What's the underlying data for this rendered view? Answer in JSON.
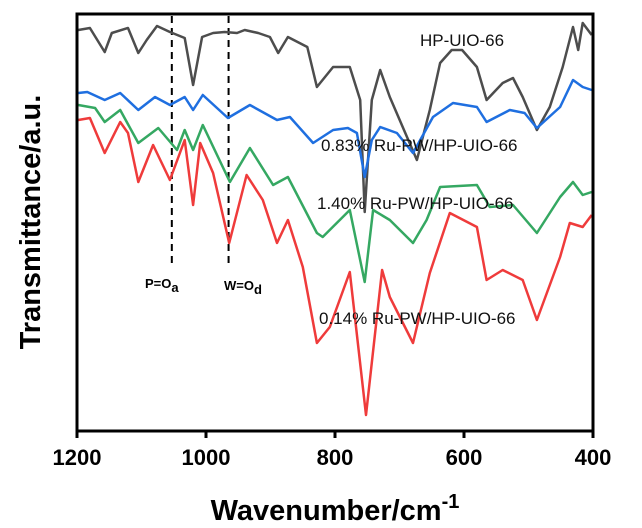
{
  "chart_data": {
    "type": "line",
    "title": "",
    "xlabel": "Wavenumber/cm",
    "xlabel_superscript": "-1",
    "ylabel": "Transmittance/a.u.",
    "xlim": [
      1200,
      400
    ],
    "ylim": [
      0,
      415
    ],
    "x_reversed": true,
    "grid": false,
    "xticks": [
      "1200",
      "1000",
      "800",
      "600",
      "400"
    ],
    "xtick_values": [
      1200,
      1000,
      800,
      600,
      400
    ],
    "annotations": [
      {
        "text": "P=O",
        "sub": "a",
        "x": 1053
      },
      {
        "text": "W=O",
        "sub": "d",
        "x": 965
      }
    ],
    "series": [
      {
        "name": "HP-UIO-66",
        "color": "#4d4d4d",
        "points": [
          [
            1198,
            400
          ],
          [
            1180,
            402
          ],
          [
            1157,
            378
          ],
          [
            1146,
            397
          ],
          [
            1121,
            402
          ],
          [
            1105,
            377
          ],
          [
            1092,
            390
          ],
          [
            1076,
            404
          ],
          [
            1056,
            398
          ],
          [
            1033,
            392
          ],
          [
            1020,
            345
          ],
          [
            1006,
            393
          ],
          [
            989,
            397
          ],
          [
            971,
            398
          ],
          [
            952,
            397
          ],
          [
            940,
            400
          ],
          [
            919,
            397
          ],
          [
            901,
            393
          ],
          [
            888,
            377
          ],
          [
            873,
            393
          ],
          [
            843,
            383
          ],
          [
            828,
            343
          ],
          [
            803,
            363
          ],
          [
            777,
            363
          ],
          [
            761,
            330
          ],
          [
            754,
            218
          ],
          [
            743,
            330
          ],
          [
            730,
            360
          ],
          [
            715,
            333
          ],
          [
            695,
            303
          ],
          [
            673,
            270
          ],
          [
            653,
            320
          ],
          [
            637,
            367
          ],
          [
            619,
            380
          ],
          [
            603,
            380
          ],
          [
            580,
            363
          ],
          [
            565,
            330
          ],
          [
            540,
            347
          ],
          [
            524,
            352
          ],
          [
            509,
            333
          ],
          [
            487,
            300
          ],
          [
            467,
            323
          ],
          [
            447,
            363
          ],
          [
            431,
            403
          ],
          [
            423,
            380
          ],
          [
            416,
            407
          ],
          [
            402,
            395
          ]
        ]
      },
      {
        "name": "0.83% Ru-PW/HP-UIO-66",
        "color": "#1f6fe0",
        "points": [
          [
            1198,
            337
          ],
          [
            1184,
            338
          ],
          [
            1157,
            330
          ],
          [
            1133,
            337
          ],
          [
            1105,
            320
          ],
          [
            1079,
            333
          ],
          [
            1056,
            325
          ],
          [
            1033,
            333
          ],
          [
            1020,
            320
          ],
          [
            1005,
            335
          ],
          [
            966,
            312
          ],
          [
            932,
            325
          ],
          [
            890,
            310
          ],
          [
            870,
            313
          ],
          [
            834,
            287
          ],
          [
            803,
            300
          ],
          [
            780,
            302
          ],
          [
            766,
            297
          ],
          [
            754,
            253
          ],
          [
            743,
            290
          ],
          [
            730,
            303
          ],
          [
            704,
            297
          ],
          [
            679,
            277
          ],
          [
            648,
            313
          ],
          [
            617,
            327
          ],
          [
            580,
            323
          ],
          [
            565,
            308
          ],
          [
            529,
            320
          ],
          [
            506,
            317
          ],
          [
            487,
            302
          ],
          [
            451,
            323
          ],
          [
            431,
            350
          ],
          [
            416,
            343
          ],
          [
            402,
            340
          ]
        ]
      },
      {
        "name": "1.40% Ru-PW/HP-UIO-66",
        "color": "#35a862",
        "points": [
          [
            1198,
            325
          ],
          [
            1172,
            322
          ],
          [
            1157,
            308
          ],
          [
            1133,
            320
          ],
          [
            1105,
            287
          ],
          [
            1074,
            302
          ],
          [
            1045,
            280
          ],
          [
            1033,
            300
          ],
          [
            1020,
            280
          ],
          [
            1005,
            305
          ],
          [
            963,
            248
          ],
          [
            932,
            282
          ],
          [
            896,
            245
          ],
          [
            873,
            253
          ],
          [
            828,
            197
          ],
          [
            819,
            193
          ],
          [
            777,
            220
          ],
          [
            754,
            148
          ],
          [
            741,
            220
          ],
          [
            715,
            210
          ],
          [
            679,
            187
          ],
          [
            658,
            210
          ],
          [
            637,
            243
          ],
          [
            580,
            245
          ],
          [
            560,
            223
          ],
          [
            524,
            225
          ],
          [
            487,
            197
          ],
          [
            451,
            233
          ],
          [
            431,
            248
          ],
          [
            416,
            235
          ],
          [
            402,
            238
          ]
        ]
      },
      {
        "name": "0.14% Ru-PW/HP-UIO-66",
        "color": "#ef3b3b",
        "points": [
          [
            1198,
            310
          ],
          [
            1180,
            312
          ],
          [
            1157,
            277
          ],
          [
            1133,
            308
          ],
          [
            1121,
            297
          ],
          [
            1105,
            248
          ],
          [
            1082,
            285
          ],
          [
            1056,
            250
          ],
          [
            1033,
            290
          ],
          [
            1020,
            225
          ],
          [
            1009,
            287
          ],
          [
            989,
            257
          ],
          [
            964,
            187
          ],
          [
            937,
            255
          ],
          [
            912,
            230
          ],
          [
            890,
            187
          ],
          [
            873,
            210
          ],
          [
            850,
            163
          ],
          [
            828,
            87
          ],
          [
            808,
            103
          ],
          [
            777,
            158
          ],
          [
            752,
            15
          ],
          [
            727,
            160
          ],
          [
            715,
            133
          ],
          [
            679,
            87
          ],
          [
            653,
            157
          ],
          [
            622,
            217
          ],
          [
            580,
            203
          ],
          [
            565,
            150
          ],
          [
            540,
            160
          ],
          [
            509,
            150
          ],
          [
            487,
            110
          ],
          [
            451,
            173
          ],
          [
            436,
            207
          ],
          [
            416,
            203
          ],
          [
            402,
            215
          ]
        ]
      }
    ]
  }
}
